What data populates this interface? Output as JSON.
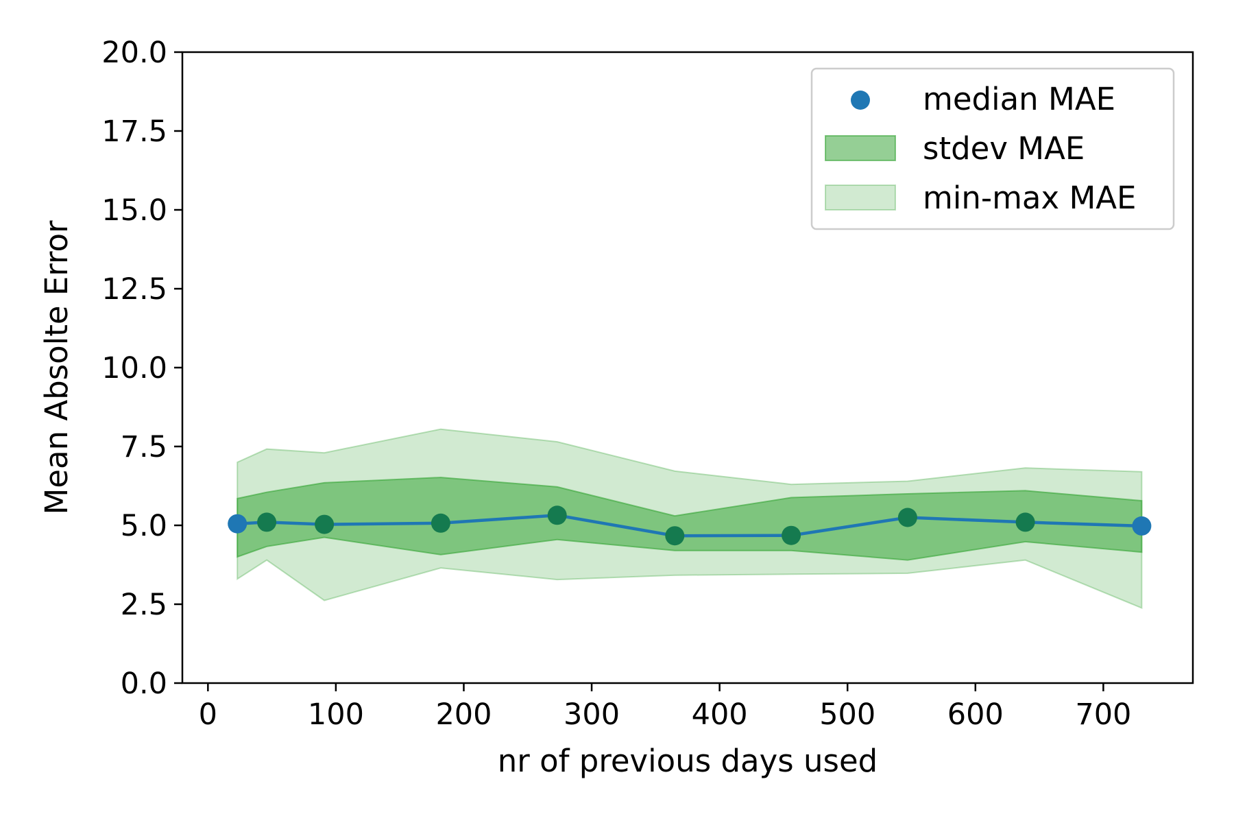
{
  "chart_data": {
    "type": "line",
    "title": "",
    "xlabel": "nr of previous days used",
    "ylabel": "Mean Absolte Error",
    "xlim": [
      -20,
      770
    ],
    "ylim": [
      0.0,
      20.0
    ],
    "xticks": [
      0,
      100,
      200,
      300,
      400,
      500,
      600,
      700
    ],
    "yticks": [
      0.0,
      2.5,
      5.0,
      7.5,
      10.0,
      12.5,
      15.0,
      17.5,
      20.0
    ],
    "ytick_format": 1,
    "grid": false,
    "legend_position": "top-right",
    "x": [
      23,
      46,
      91,
      182,
      273,
      365,
      456,
      547,
      639,
      730
    ],
    "median": [
      5.05,
      5.1,
      5.03,
      5.07,
      5.32,
      4.67,
      4.68,
      5.25,
      5.1,
      4.98
    ],
    "stdev_low": [
      4.0,
      4.33,
      4.62,
      4.07,
      4.55,
      4.2,
      4.2,
      3.9,
      4.48,
      4.15
    ],
    "stdev_high": [
      5.85,
      6.05,
      6.35,
      6.52,
      6.22,
      5.3,
      5.88,
      6.0,
      6.1,
      5.78
    ],
    "min": [
      3.3,
      3.9,
      2.62,
      3.65,
      3.28,
      3.42,
      3.45,
      3.48,
      3.9,
      2.38
    ],
    "max": [
      7.0,
      7.42,
      7.3,
      8.05,
      7.65,
      6.72,
      6.3,
      6.4,
      6.82,
      6.7
    ],
    "legend": [
      {
        "label": "median MAE",
        "kind": "marker"
      },
      {
        "label": "stdev MAE",
        "kind": "band-dark"
      },
      {
        "label": "min-max MAE",
        "kind": "band-light"
      }
    ],
    "colors": {
      "median": "#1f77b4",
      "median_marker_overlap": "#157a4f",
      "stdev_fill": "#2ca02c",
      "stdev_opacity": 0.5,
      "minmax_fill": "#2ca02c",
      "minmax_opacity": 0.22
    }
  }
}
